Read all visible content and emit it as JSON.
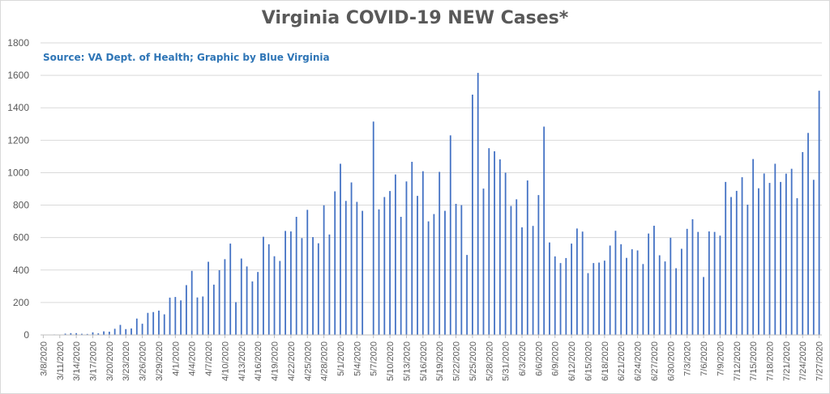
{
  "chart_data": {
    "type": "bar",
    "title": "Virginia COVID-19 NEW Cases*",
    "subtitle": "Source: VA Dept. of Health; Graphic by Blue Virginia",
    "xlabel": "",
    "ylabel": "",
    "ylim": [
      0,
      1800
    ],
    "yticks": [
      0,
      200,
      400,
      600,
      800,
      1000,
      1200,
      1400,
      1600,
      1800
    ],
    "grid": true,
    "legend": "none",
    "bar_color": "#4472c4",
    "start_date": "2020-03-08",
    "categories": [
      "3/8/2020",
      "3/9/2020",
      "3/10/2020",
      "3/11/2020",
      "3/12/2020",
      "3/13/2020",
      "3/14/2020",
      "3/15/2020",
      "3/16/2020",
      "3/17/2020",
      "3/18/2020",
      "3/19/2020",
      "3/20/2020",
      "3/21/2020",
      "3/22/2020",
      "3/23/2020",
      "3/24/2020",
      "3/25/2020",
      "3/26/2020",
      "3/27/2020",
      "3/28/2020",
      "3/29/2020",
      "3/30/2020",
      "3/31/2020",
      "4/1/2020",
      "4/2/2020",
      "4/3/2020",
      "4/4/2020",
      "4/5/2020",
      "4/6/2020",
      "4/7/2020",
      "4/8/2020",
      "4/9/2020",
      "4/10/2020",
      "4/11/2020",
      "4/12/2020",
      "4/13/2020",
      "4/14/2020",
      "4/15/2020",
      "4/16/2020",
      "4/17/2020",
      "4/18/2020",
      "4/19/2020",
      "4/20/2020",
      "4/21/2020",
      "4/22/2020",
      "4/23/2020",
      "4/24/2020",
      "4/25/2020",
      "4/26/2020",
      "4/27/2020",
      "4/28/2020",
      "4/29/2020",
      "4/30/2020",
      "5/1/2020",
      "5/2/2020",
      "5/3/2020",
      "5/4/2020",
      "5/5/2020",
      "5/6/2020",
      "5/7/2020",
      "5/8/2020",
      "5/9/2020",
      "5/10/2020",
      "5/11/2020",
      "5/12/2020",
      "5/13/2020",
      "5/14/2020",
      "5/15/2020",
      "5/16/2020",
      "5/17/2020",
      "5/18/2020",
      "5/19/2020",
      "5/20/2020",
      "5/21/2020",
      "5/22/2020",
      "5/23/2020",
      "5/24/2020",
      "5/25/2020",
      "5/26/2020",
      "5/27/2020",
      "5/28/2020",
      "5/29/2020",
      "5/30/2020",
      "5/31/2020",
      "6/1/2020",
      "6/2/2020",
      "6/3/2020",
      "6/4/2020",
      "6/5/2020",
      "6/6/2020",
      "6/7/2020",
      "6/8/2020",
      "6/9/2020",
      "6/10/2020",
      "6/11/2020",
      "6/12/2020",
      "6/13/2020",
      "6/14/2020",
      "6/15/2020",
      "6/16/2020",
      "6/17/2020",
      "6/18/2020",
      "6/19/2020",
      "6/20/2020",
      "6/21/2020",
      "6/22/2020",
      "6/23/2020",
      "6/24/2020",
      "6/25/2020",
      "6/26/2020",
      "6/27/2020",
      "6/28/2020",
      "6/29/2020",
      "6/30/2020",
      "7/1/2020",
      "7/2/2020",
      "7/3/2020",
      "7/4/2020",
      "7/5/2020",
      "7/6/2020",
      "7/7/2020",
      "7/8/2020",
      "7/9/2020",
      "7/10/2020",
      "7/11/2020",
      "7/12/2020",
      "7/13/2020",
      "7/14/2020",
      "7/15/2020",
      "7/16/2020",
      "7/17/2020",
      "7/18/2020",
      "7/19/2020",
      "7/20/2020",
      "7/21/2020",
      "7/22/2020",
      "7/23/2020",
      "7/24/2020",
      "7/25/2020",
      "7/26/2020",
      "7/27/2020"
    ],
    "tick_labels": [
      "3/8/2020",
      "3/11/2020",
      "3/14/2020",
      "3/17/2020",
      "3/20/2020",
      "3/23/2020",
      "3/26/2020",
      "3/29/2020",
      "4/1/2020",
      "4/4/2020",
      "4/7/2020",
      "4/10/2020",
      "4/13/2020",
      "4/16/2020",
      "4/19/2020",
      "4/22/2020",
      "4/25/2020",
      "4/28/2020",
      "5/1/2020",
      "5/4/2020",
      "5/7/2020",
      "5/10/2020",
      "5/13/2020",
      "5/16/2020",
      "5/19/2020",
      "5/22/2020",
      "5/25/2020",
      "5/28/2020",
      "5/31/2020",
      "6/3/2020",
      "6/6/2020",
      "6/9/2020",
      "6/12/2020",
      "6/15/2020",
      "6/18/2020",
      "6/21/2020",
      "6/24/2020",
      "6/27/2020",
      "6/30/2020",
      "7/3/2020",
      "7/6/2020",
      "7/9/2020",
      "7/12/2020",
      "7/15/2020",
      "7/18/2020",
      "7/21/2020",
      "7/24/2020",
      "7/27/2020"
    ],
    "values": [
      2,
      2,
      3,
      2,
      8,
      11,
      11,
      7,
      6,
      16,
      10,
      22,
      20,
      38,
      62,
      36,
      40,
      101,
      69,
      136,
      141,
      150,
      127,
      230,
      234,
      213,
      307,
      395,
      231,
      237,
      451,
      310,
      399,
      467,
      563,
      202,
      471,
      422,
      330,
      388,
      605,
      559,
      485,
      456,
      641,
      638,
      728,
      597,
      771,
      603,
      565,
      799,
      619,
      885,
      1055,
      826,
      940,
      820,
      765,
      0,
      1315,
      774,
      850,
      887,
      989,
      728,
      946,
      1067,
      857,
      1009,
      700,
      745,
      1005,
      765,
      1230,
      808,
      800,
      493,
      1481,
      1615,
      902,
      1151,
      1132,
      1082,
      1000,
      795,
      836,
      663,
      952,
      672,
      862,
      1284,
      570,
      484,
      443,
      474,
      563,
      656,
      637,
      381,
      443,
      446,
      458,
      551,
      642,
      559,
      475,
      528,
      521,
      437,
      625,
      673,
      491,
      453,
      599,
      411,
      531,
      654,
      713,
      635,
      357,
      638,
      635,
      612,
      943,
      850,
      888,
      972,
      803,
      1084,
      904,
      995,
      937,
      1055,
      943,
      994,
      1024,
      843,
      1127,
      1245,
      956,
      1505
    ]
  }
}
